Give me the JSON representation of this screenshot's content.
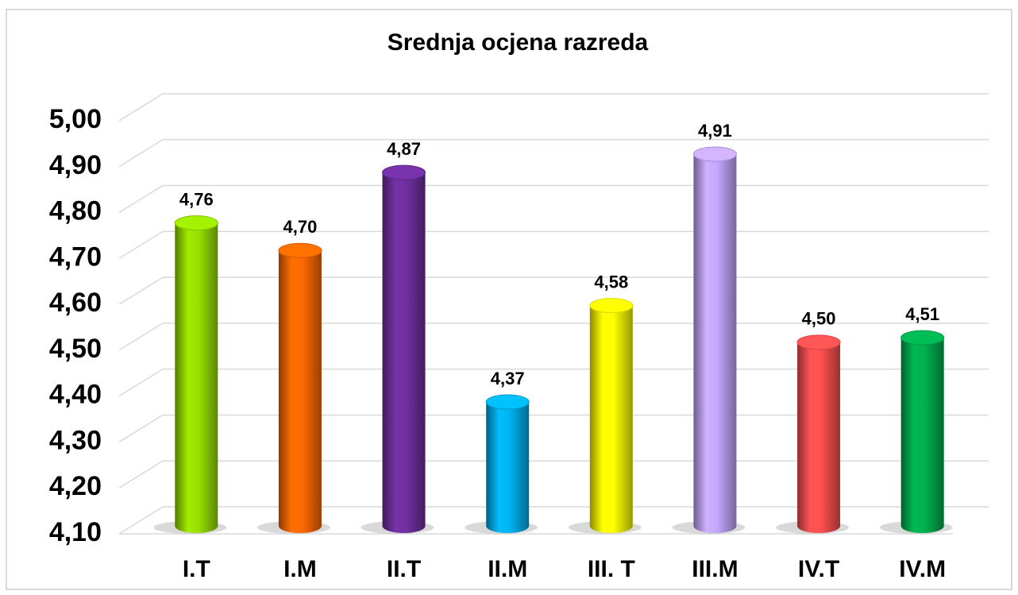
{
  "chart_data": {
    "type": "bar",
    "title": "Srednja ocjena razreda",
    "categories": [
      "I.T",
      "I.M",
      "II.T",
      "II.M",
      "III. T",
      "III.M",
      "IV.T",
      "IV.M"
    ],
    "values": [
      4.76,
      4.7,
      4.87,
      4.37,
      4.58,
      4.91,
      4.5,
      4.51
    ],
    "value_labels": [
      "4,76",
      "4,70",
      "4,87",
      "4,37",
      "4,58",
      "4,91",
      "4,50",
      "4,51"
    ],
    "colors": [
      "#99e000",
      "#ff6a00",
      "#7030a0",
      "#00b4f0",
      "#ffff00",
      "#c4a8ff",
      "#ff5050",
      "#00b050"
    ],
    "ylim": [
      4.1,
      5.0
    ],
    "yticks": [
      {
        "value": 4.1,
        "label": "4,10"
      },
      {
        "value": 4.2,
        "label": "4,20"
      },
      {
        "value": 4.3,
        "label": "4,30"
      },
      {
        "value": 4.4,
        "label": "4,40"
      },
      {
        "value": 4.5,
        "label": "4,50"
      },
      {
        "value": 4.6,
        "label": "4,60"
      },
      {
        "value": 4.7,
        "label": "4,70"
      },
      {
        "value": 4.8,
        "label": "4,80"
      },
      {
        "value": 4.9,
        "label": "4,90"
      },
      {
        "value": 5.0,
        "label": "5,00"
      }
    ],
    "grid": true
  }
}
